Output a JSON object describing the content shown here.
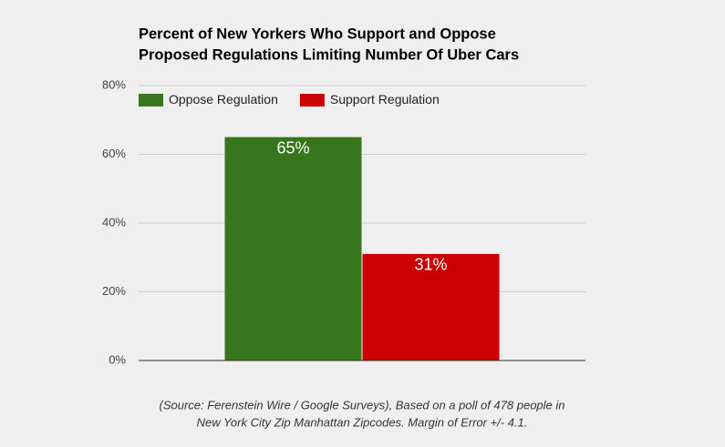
{
  "chart_data": {
    "type": "bar",
    "title": [
      "Percent of New Yorkers Who Support and Oppose",
      "Proposed Regulations Limiting Number Of Uber Cars"
    ],
    "categories": [
      null
    ],
    "series": [
      {
        "name": "Oppose Regulation",
        "color": "#38761d",
        "values": [
          65
        ],
        "value_labels": [
          "65%"
        ]
      },
      {
        "name": "Support Regulation",
        "color": "#cc0000",
        "values": [
          31
        ],
        "value_labels": [
          "31%"
        ]
      }
    ],
    "ylim": [
      0,
      80
    ],
    "yticks": [
      {
        "value": 0,
        "label": "0%"
      },
      {
        "value": 20,
        "label": "20%"
      },
      {
        "value": 40,
        "label": "40%"
      },
      {
        "value": 60,
        "label": "60%"
      },
      {
        "value": 80,
        "label": "80%"
      }
    ],
    "grid": true,
    "legend": "top-left",
    "note": [
      "(Source: Ferenstein Wire / Google Surveys), Based on a poll of 478 people in",
      "New York City Zip Manhattan Zipcodes. Margin of Error +/- 4.1."
    ]
  }
}
